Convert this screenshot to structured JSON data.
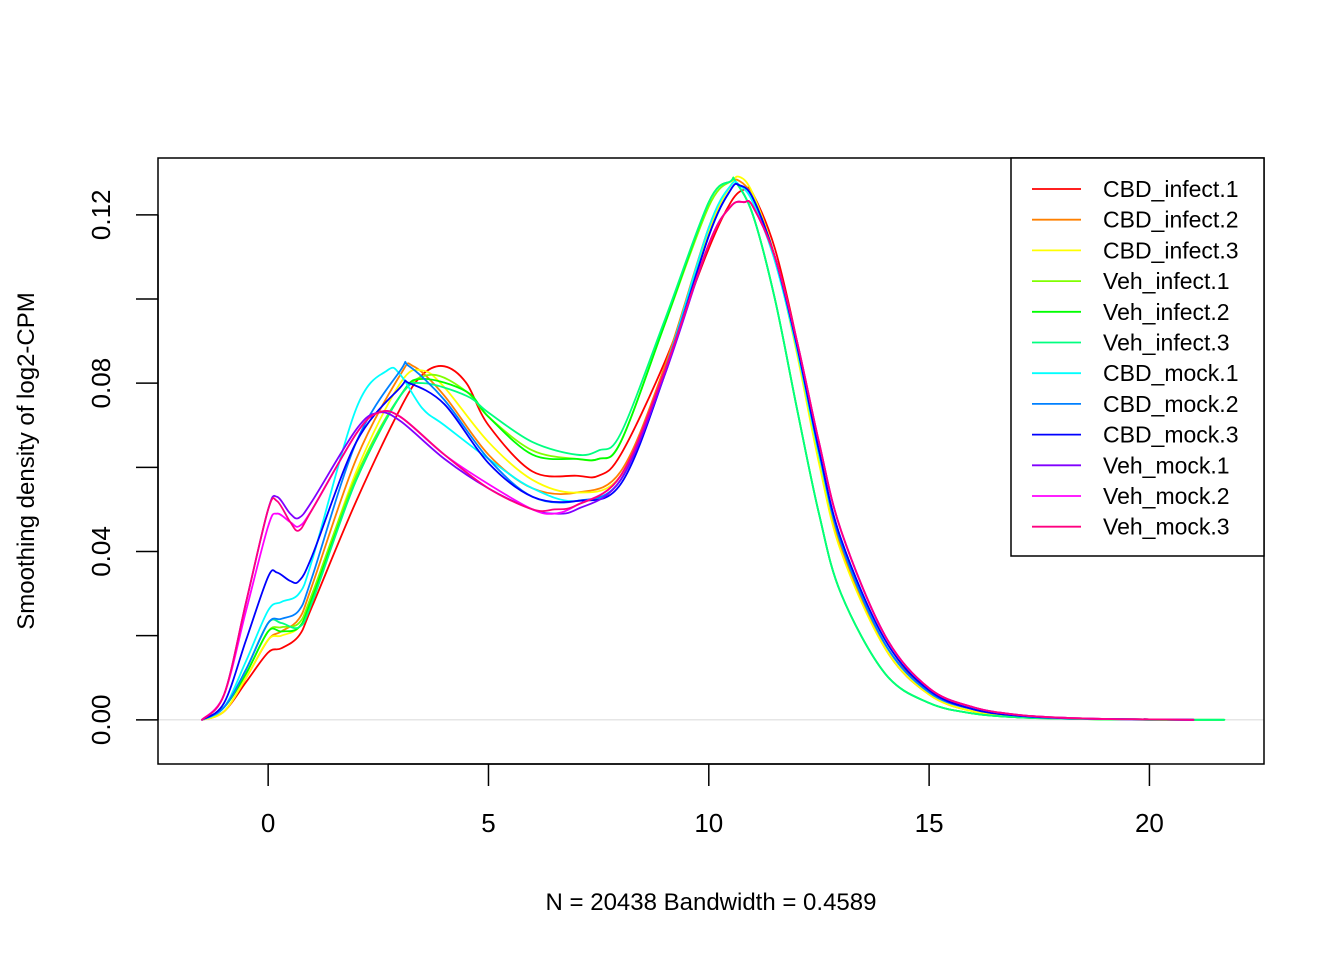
{
  "chart_data": {
    "type": "line",
    "title": "",
    "xlabel": "N = 20438   Bandwidth = 0.4589",
    "ylabel": "Smoothing density of log2-CPM",
    "xlim": [
      -2.5,
      22.6
    ],
    "ylim": [
      -0.0105,
      0.1335
    ],
    "x_ticks": [
      0,
      5,
      10,
      15,
      20
    ],
    "x_tick_labels": [
      "0",
      "5",
      "10",
      "15",
      "20"
    ],
    "y_ticks": [
      0.0,
      0.02,
      0.04,
      0.06,
      0.08,
      0.1,
      0.12
    ],
    "y_tick_labels": [
      "0.00",
      "",
      "0.04",
      "",
      "0.08",
      "",
      "0.12"
    ],
    "grid": false,
    "baseline": {
      "y": 0,
      "color": "#dddddd"
    },
    "legend": {
      "position": "top-right"
    },
    "series": [
      {
        "name": "CBD_infect.1",
        "color": "#FF0000",
        "x": [
          -1.5,
          -1.0,
          -0.5,
          0.0,
          0.3,
          0.7,
          1.0,
          2.0,
          3.0,
          3.5,
          4.0,
          4.5,
          5.0,
          6.0,
          7.0,
          7.5,
          8.0,
          9.0,
          10.0,
          10.5,
          10.8,
          11.0,
          11.5,
          12.0,
          12.5,
          13.0,
          14.0,
          15.0,
          16.0,
          17.0,
          18.0,
          19.0,
          20.0,
          21.0
        ],
        "y": [
          0.0,
          0.002,
          0.009,
          0.016,
          0.017,
          0.02,
          0.027,
          0.052,
          0.074,
          0.082,
          0.084,
          0.08,
          0.07,
          0.059,
          0.058,
          0.058,
          0.063,
          0.085,
          0.112,
          0.123,
          0.126,
          0.125,
          0.112,
          0.09,
          0.063,
          0.042,
          0.018,
          0.007,
          0.0025,
          0.001,
          0.0004,
          0.0002,
          0.0001,
          0.0
        ]
      },
      {
        "name": "CBD_infect.2",
        "color": "#FF8000",
        "x": [
          -1.5,
          -1.0,
          -0.5,
          0.0,
          0.3,
          0.7,
          1.0,
          2.0,
          3.0,
          3.3,
          4.0,
          5.0,
          6.0,
          7.0,
          8.0,
          9.0,
          10.0,
          10.5,
          10.7,
          11.0,
          11.5,
          12.0,
          12.5,
          13.0,
          14.0,
          15.0,
          16.0,
          17.0,
          18.0,
          19.0,
          20.0,
          21.0
        ],
        "y": [
          0.0,
          0.002,
          0.01,
          0.019,
          0.021,
          0.024,
          0.032,
          0.062,
          0.082,
          0.084,
          0.077,
          0.063,
          0.055,
          0.054,
          0.059,
          0.084,
          0.117,
          0.127,
          0.128,
          0.124,
          0.11,
          0.088,
          0.062,
          0.041,
          0.017,
          0.006,
          0.002,
          0.001,
          0.0004,
          0.0002,
          0.0001,
          0.0
        ]
      },
      {
        "name": "CBD_infect.3",
        "color": "#FFFF00",
        "x": [
          -1.5,
          -1.0,
          -0.5,
          0.0,
          0.3,
          0.7,
          1.0,
          2.0,
          3.0,
          3.5,
          4.0,
          5.0,
          6.0,
          7.0,
          8.0,
          9.0,
          10.0,
          10.5,
          10.7,
          11.0,
          11.5,
          12.0,
          12.5,
          13.0,
          14.0,
          15.0,
          16.0,
          17.0,
          18.0,
          19.0,
          20.0,
          21.0
        ],
        "y": [
          0.0,
          0.002,
          0.01,
          0.019,
          0.02,
          0.022,
          0.029,
          0.059,
          0.08,
          0.083,
          0.079,
          0.066,
          0.057,
          0.054,
          0.058,
          0.082,
          0.116,
          0.127,
          0.129,
          0.125,
          0.11,
          0.087,
          0.061,
          0.04,
          0.017,
          0.006,
          0.002,
          0.001,
          0.0004,
          0.0002,
          0.0001,
          0.0
        ]
      },
      {
        "name": "Veh_infect.1",
        "color": "#80FF00",
        "x": [
          -1.5,
          -1.0,
          -0.5,
          0.0,
          0.3,
          0.7,
          1.0,
          2.0,
          3.0,
          3.7,
          4.5,
          5.0,
          6.0,
          7.0,
          7.5,
          8.0,
          9.0,
          10.0,
          10.5,
          10.6,
          11.0,
          11.5,
          12.0,
          12.5,
          13.0,
          14.0,
          15.0,
          16.0,
          17.0,
          18.0,
          19.0,
          20.0,
          21.0,
          21.7
        ],
        "y": [
          0.0,
          0.003,
          0.011,
          0.021,
          0.022,
          0.023,
          0.03,
          0.058,
          0.077,
          0.082,
          0.078,
          0.072,
          0.064,
          0.062,
          0.062,
          0.066,
          0.094,
          0.122,
          0.128,
          0.128,
          0.12,
          0.1,
          0.074,
          0.049,
          0.03,
          0.011,
          0.004,
          0.0015,
          0.0006,
          0.0003,
          0.0001,
          0.0,
          0.0,
          0.0
        ]
      },
      {
        "name": "Veh_infect.2",
        "color": "#00FF00",
        "x": [
          -1.5,
          -1.0,
          -0.5,
          0.0,
          0.3,
          0.7,
          1.0,
          2.0,
          3.0,
          3.5,
          4.5,
          5.0,
          6.0,
          7.0,
          7.5,
          8.0,
          9.0,
          10.0,
          10.5,
          10.6,
          11.0,
          11.5,
          12.0,
          12.5,
          13.0,
          14.0,
          15.0,
          16.0,
          17.0,
          18.0,
          19.0,
          20.0,
          21.0,
          21.7
        ],
        "y": [
          0.0,
          0.003,
          0.011,
          0.021,
          0.021,
          0.022,
          0.029,
          0.057,
          0.077,
          0.081,
          0.078,
          0.072,
          0.063,
          0.062,
          0.062,
          0.066,
          0.094,
          0.123,
          0.128,
          0.128,
          0.12,
          0.1,
          0.074,
          0.049,
          0.03,
          0.011,
          0.004,
          0.0015,
          0.0006,
          0.0003,
          0.0001,
          0.0,
          0.0,
          0.0
        ]
      },
      {
        "name": "Veh_infect.3",
        "color": "#00FF80",
        "x": [
          -1.5,
          -1.0,
          -0.5,
          0.0,
          0.3,
          0.7,
          1.0,
          2.0,
          3.0,
          3.5,
          4.5,
          5.0,
          6.0,
          7.0,
          7.5,
          8.0,
          9.0,
          10.0,
          10.5,
          10.6,
          11.0,
          11.5,
          12.0,
          12.5,
          13.0,
          14.0,
          15.0,
          16.0,
          17.0,
          18.0,
          19.0,
          20.0,
          21.0,
          21.7
        ],
        "y": [
          0.0,
          0.003,
          0.012,
          0.023,
          0.023,
          0.022,
          0.028,
          0.057,
          0.077,
          0.08,
          0.077,
          0.073,
          0.066,
          0.063,
          0.064,
          0.068,
          0.095,
          0.123,
          0.128,
          0.128,
          0.12,
          0.1,
          0.074,
          0.049,
          0.03,
          0.011,
          0.004,
          0.0015,
          0.0006,
          0.0003,
          0.0001,
          0.0,
          0.0,
          0.0
        ]
      },
      {
        "name": "CBD_mock.1",
        "color": "#00FFFF",
        "x": [
          -1.5,
          -1.0,
          -0.5,
          0.0,
          0.3,
          0.7,
          1.0,
          2.0,
          2.7,
          3.0,
          3.5,
          4.0,
          5.0,
          6.0,
          7.0,
          8.0,
          9.0,
          10.0,
          10.5,
          10.7,
          11.0,
          11.5,
          12.0,
          12.5,
          13.0,
          14.0,
          15.0,
          16.0,
          17.0,
          18.0,
          19.0,
          20.0,
          21.0
        ],
        "y": [
          0.0,
          0.003,
          0.014,
          0.026,
          0.028,
          0.03,
          0.038,
          0.074,
          0.083,
          0.082,
          0.074,
          0.07,
          0.062,
          0.055,
          0.052,
          0.057,
          0.083,
          0.117,
          0.127,
          0.127,
          0.123,
          0.109,
          0.088,
          0.063,
          0.042,
          0.018,
          0.0065,
          0.0025,
          0.001,
          0.0004,
          0.0002,
          0.0001,
          0.0
        ]
      },
      {
        "name": "CBD_mock.2",
        "color": "#0080FF",
        "x": [
          -1.5,
          -1.0,
          -0.5,
          0.0,
          0.3,
          0.7,
          1.0,
          2.0,
          3.0,
          3.2,
          4.0,
          5.0,
          6.0,
          7.0,
          8.0,
          9.0,
          10.0,
          10.5,
          10.7,
          11.0,
          11.5,
          12.0,
          12.5,
          13.0,
          14.0,
          15.0,
          16.0,
          17.0,
          18.0,
          19.0,
          20.0,
          21.0
        ],
        "y": [
          0.0,
          0.003,
          0.012,
          0.023,
          0.024,
          0.026,
          0.034,
          0.066,
          0.083,
          0.084,
          0.076,
          0.062,
          0.053,
          0.052,
          0.057,
          0.083,
          0.115,
          0.126,
          0.127,
          0.124,
          0.11,
          0.089,
          0.064,
          0.042,
          0.018,
          0.0065,
          0.0025,
          0.001,
          0.0004,
          0.0002,
          0.0001,
          0.0
        ]
      },
      {
        "name": "CBD_mock.3",
        "color": "#0000FF",
        "x": [
          -1.5,
          -1.0,
          -0.5,
          0.0,
          0.2,
          0.5,
          0.7,
          1.0,
          2.0,
          3.0,
          3.2,
          4.0,
          5.0,
          6.0,
          7.0,
          8.0,
          9.0,
          10.0,
          10.5,
          10.7,
          11.0,
          11.5,
          12.0,
          12.5,
          13.0,
          14.0,
          15.0,
          16.0,
          17.0,
          18.0,
          19.0,
          20.0,
          21.0
        ],
        "y": [
          0.0,
          0.004,
          0.019,
          0.034,
          0.035,
          0.033,
          0.033,
          0.039,
          0.066,
          0.079,
          0.08,
          0.075,
          0.061,
          0.053,
          0.052,
          0.056,
          0.082,
          0.115,
          0.126,
          0.127,
          0.124,
          0.11,
          0.089,
          0.064,
          0.043,
          0.019,
          0.007,
          0.0025,
          0.001,
          0.0004,
          0.0002,
          0.0001,
          0.0
        ]
      },
      {
        "name": "Veh_mock.1",
        "color": "#8000FF",
        "x": [
          -1.5,
          -1.0,
          -0.5,
          0.0,
          0.2,
          0.5,
          0.7,
          1.0,
          2.0,
          2.5,
          3.0,
          4.0,
          5.0,
          6.0,
          6.5,
          7.0,
          8.0,
          9.0,
          10.0,
          10.5,
          10.8,
          11.0,
          11.5,
          12.0,
          12.5,
          13.0,
          14.0,
          15.0,
          16.0,
          17.0,
          18.0,
          19.0,
          20.0,
          21.0
        ],
        "y": [
          0.0,
          0.006,
          0.028,
          0.05,
          0.053,
          0.049,
          0.048,
          0.052,
          0.069,
          0.073,
          0.071,
          0.062,
          0.055,
          0.05,
          0.049,
          0.05,
          0.057,
          0.082,
          0.113,
          0.122,
          0.123,
          0.122,
          0.11,
          0.09,
          0.066,
          0.045,
          0.02,
          0.0075,
          0.003,
          0.0012,
          0.0005,
          0.0002,
          0.0001,
          0.0
        ]
      },
      {
        "name": "Veh_mock.2",
        "color": "#FF00FF",
        "x": [
          -1.5,
          -1.0,
          -0.5,
          0.0,
          0.2,
          0.5,
          0.7,
          1.0,
          2.0,
          2.5,
          3.0,
          4.0,
          5.0,
          6.0,
          6.5,
          7.0,
          8.0,
          9.0,
          10.0,
          10.5,
          10.8,
          11.0,
          11.5,
          12.0,
          12.5,
          13.0,
          14.0,
          15.0,
          16.0,
          17.0,
          18.0,
          19.0,
          20.0,
          21.0
        ],
        "y": [
          0.0,
          0.006,
          0.026,
          0.046,
          0.049,
          0.047,
          0.046,
          0.05,
          0.068,
          0.073,
          0.072,
          0.063,
          0.056,
          0.05,
          0.049,
          0.051,
          0.058,
          0.083,
          0.113,
          0.122,
          0.123,
          0.122,
          0.11,
          0.09,
          0.066,
          0.045,
          0.02,
          0.0075,
          0.003,
          0.0012,
          0.0005,
          0.0002,
          0.0001,
          0.0
        ]
      },
      {
        "name": "Veh_mock.3",
        "color": "#FF0080",
        "x": [
          -1.5,
          -1.0,
          -0.5,
          0.0,
          0.2,
          0.5,
          0.7,
          1.0,
          2.0,
          2.5,
          3.0,
          4.0,
          5.0,
          6.0,
          6.5,
          7.0,
          8.0,
          9.0,
          10.0,
          10.5,
          10.8,
          11.0,
          11.5,
          12.0,
          12.5,
          13.0,
          14.0,
          15.0,
          16.0,
          17.0,
          18.0,
          19.0,
          20.0,
          21.0
        ],
        "y": [
          0.0,
          0.006,
          0.028,
          0.05,
          0.052,
          0.047,
          0.045,
          0.05,
          0.068,
          0.073,
          0.072,
          0.063,
          0.055,
          0.05,
          0.05,
          0.051,
          0.058,
          0.083,
          0.113,
          0.122,
          0.123,
          0.122,
          0.11,
          0.09,
          0.066,
          0.045,
          0.02,
          0.0075,
          0.003,
          0.0012,
          0.0005,
          0.0002,
          0.0001,
          0.0
        ]
      }
    ]
  }
}
